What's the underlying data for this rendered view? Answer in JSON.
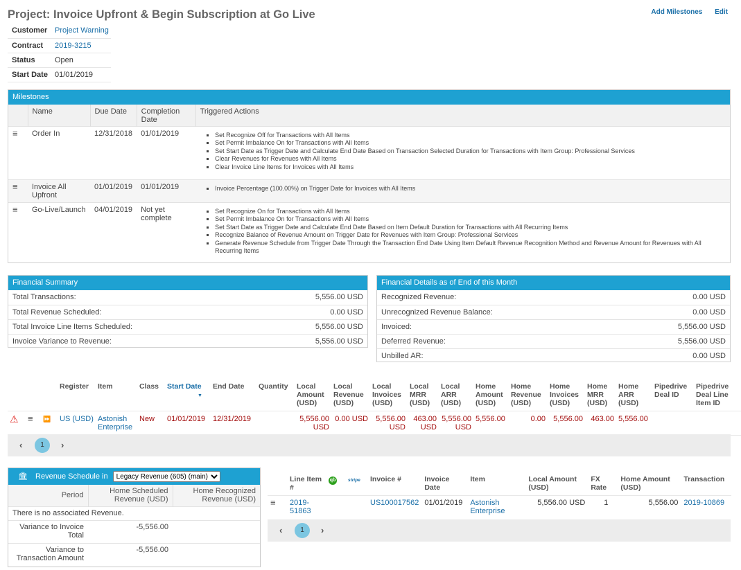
{
  "page": {
    "title": "Project: Invoice Upfront & Begin Subscription at Go Live",
    "actions": {
      "add_milestones": "Add Milestones",
      "edit": "Edit"
    }
  },
  "info": {
    "customer_label": "Customer",
    "customer_value": "Project Warning",
    "contract_label": "Contract",
    "contract_value": "2019-3215",
    "status_label": "Status",
    "status_value": "Open",
    "start_label": "Start Date",
    "start_value": "01/01/2019"
  },
  "milestones": {
    "title": "Milestones",
    "columns": {
      "name": "Name",
      "due": "Due Date",
      "completion": "Completion Date",
      "actions": "Triggered Actions"
    },
    "rows": [
      {
        "name": "Order In",
        "due": "12/31/2018",
        "completion": "01/01/2019",
        "actions": [
          "Set Recognize Off for Transactions with All Items",
          "Set Permit Imbalance On for Transactions with All Items",
          "Set Start Date as Trigger Date and Calculate End Date Based on Transaction Selected Duration for Transactions with Item Group: Professional Services",
          "Clear Revenues for Revenues with All Items",
          "Clear Invoice Line Items for Invoices with All Items"
        ]
      },
      {
        "name": "Invoice All Upfront",
        "due": "01/01/2019",
        "completion": "01/01/2019",
        "actions": [
          "Invoice Percentage (100.00%) on Trigger Date for Invoices with All Items"
        ]
      },
      {
        "name": "Go-Live/Launch",
        "due": "04/01/2019",
        "completion": "Not yet complete",
        "actions": [
          "Set Recognize On for Transactions with All Items",
          "Set Permit Imbalance On for Transactions with All Items",
          "Set Start Date as Trigger Date and Calculate End Date Based on Item Default Duration for Transactions with All Recurring Items",
          "Recognize Balance of Revenue Amount on Trigger Date for Revenues with Item Group: Professional Services",
          "Generate Revenue Schedule from Trigger Date Through the Transaction End Date Using Item Default Revenue Recognition Method and Revenue Amount for Revenues with All Recurring Items"
        ]
      }
    ]
  },
  "financial_summary": {
    "title": "Financial Summary",
    "rows": [
      {
        "label": "Total Transactions:",
        "value": "5,556.00 USD"
      },
      {
        "label": "Total Revenue Scheduled:",
        "value": "0.00 USD"
      },
      {
        "label": "Total Invoice Line Items Scheduled:",
        "value": "5,556.00 USD"
      },
      {
        "label": "Invoice Variance to Revenue:",
        "value": "5,556.00 USD"
      }
    ]
  },
  "financial_details": {
    "title": "Financial Details as of End of this Month",
    "rows": [
      {
        "label": "Recognized Revenue:",
        "value": "0.00 USD"
      },
      {
        "label": "Unrecognized Revenue Balance:",
        "value": "0.00 USD"
      },
      {
        "label": "Invoiced:",
        "value": "5,556.00 USD"
      },
      {
        "label": "Deferred Revenue:",
        "value": "5,556.00 USD"
      },
      {
        "label": "Unbilled AR:",
        "value": "0.00 USD"
      }
    ]
  },
  "transactions": {
    "columns": {
      "register": "Register",
      "item": "Item",
      "class": "Class",
      "start": "Start Date",
      "end": "End Date",
      "quantity": "Quantity",
      "local_amount": "Local Amount (USD)",
      "local_revenue": "Local Revenue (USD)",
      "local_invoices": "Local Invoices (USD)",
      "local_mrr": "Local MRR (USD)",
      "local_arr": "Local ARR (USD)",
      "home_amount": "Home Amount (USD)",
      "home_revenue": "Home Revenue (USD)",
      "home_invoices": "Home Invoices (USD)",
      "home_mrr": "Home MRR (USD)",
      "home_arr": "Home ARR (USD)",
      "pipedrive_deal": "Pipedrive Deal ID",
      "pipedrive_line": "Pipedrive Deal Line Item ID"
    },
    "row": {
      "register": "US (USD)",
      "item": "Astonish Enterprise",
      "class": "New",
      "start": "01/01/2019",
      "end": "12/31/2019",
      "quantity": "",
      "local_amount": "5,556.00 USD",
      "local_revenue": "0.00 USD",
      "local_invoices": "5,556.00 USD",
      "local_mrr": "463.00 USD",
      "local_arr": "5,556.00 USD",
      "home_amount": "5,556.00",
      "home_revenue": "0.00",
      "home_invoices": "5,556.00",
      "home_mrr": "463.00",
      "home_arr": "5,556.00"
    },
    "page": "1"
  },
  "revenue_schedule": {
    "title": "Revenue Schedule in",
    "selected": "Legacy Revenue (605) (main)",
    "columns": {
      "period": "Period",
      "home_scheduled": "Home Scheduled Revenue (USD)",
      "home_recognized": "Home Recognized Revenue (USD)"
    },
    "empty": "There is no associated Revenue.",
    "variance_invoice_label": "Variance to Invoice Total",
    "variance_invoice_value": "-5,556.00",
    "variance_transaction_label": "Variance to Transaction Amount",
    "variance_transaction_value": "-5,556.00"
  },
  "invoice_lines": {
    "columns": {
      "line_item": "Line Item #",
      "qb": "qb",
      "stripe": "stripe",
      "invoice": "Invoice #",
      "invoice_date": "Invoice Date",
      "item": "Item",
      "local_amount": "Local Amount (USD)",
      "fx_rate": "FX Rate",
      "home_amount": "Home Amount (USD)",
      "transaction": "Transaction"
    },
    "row": {
      "line_item": "2019-51863",
      "invoice": "US100017562",
      "invoice_date": "01/01/2019",
      "item": "Astonish Enterprise",
      "local_amount": "5,556.00 USD",
      "fx_rate": "1",
      "home_amount": "5,556.00",
      "transaction": "2019-10869"
    },
    "page": "1"
  },
  "icons": {
    "row_menu": "≡",
    "warning": "⚠",
    "forward": "⏩",
    "prev": "‹",
    "next": "›",
    "bank": "🏛",
    "sort_desc": "▼"
  },
  "colors": {
    "accent": "#1ea1d2",
    "link": "#1a6fa8",
    "negative": "#a30d0d"
  }
}
